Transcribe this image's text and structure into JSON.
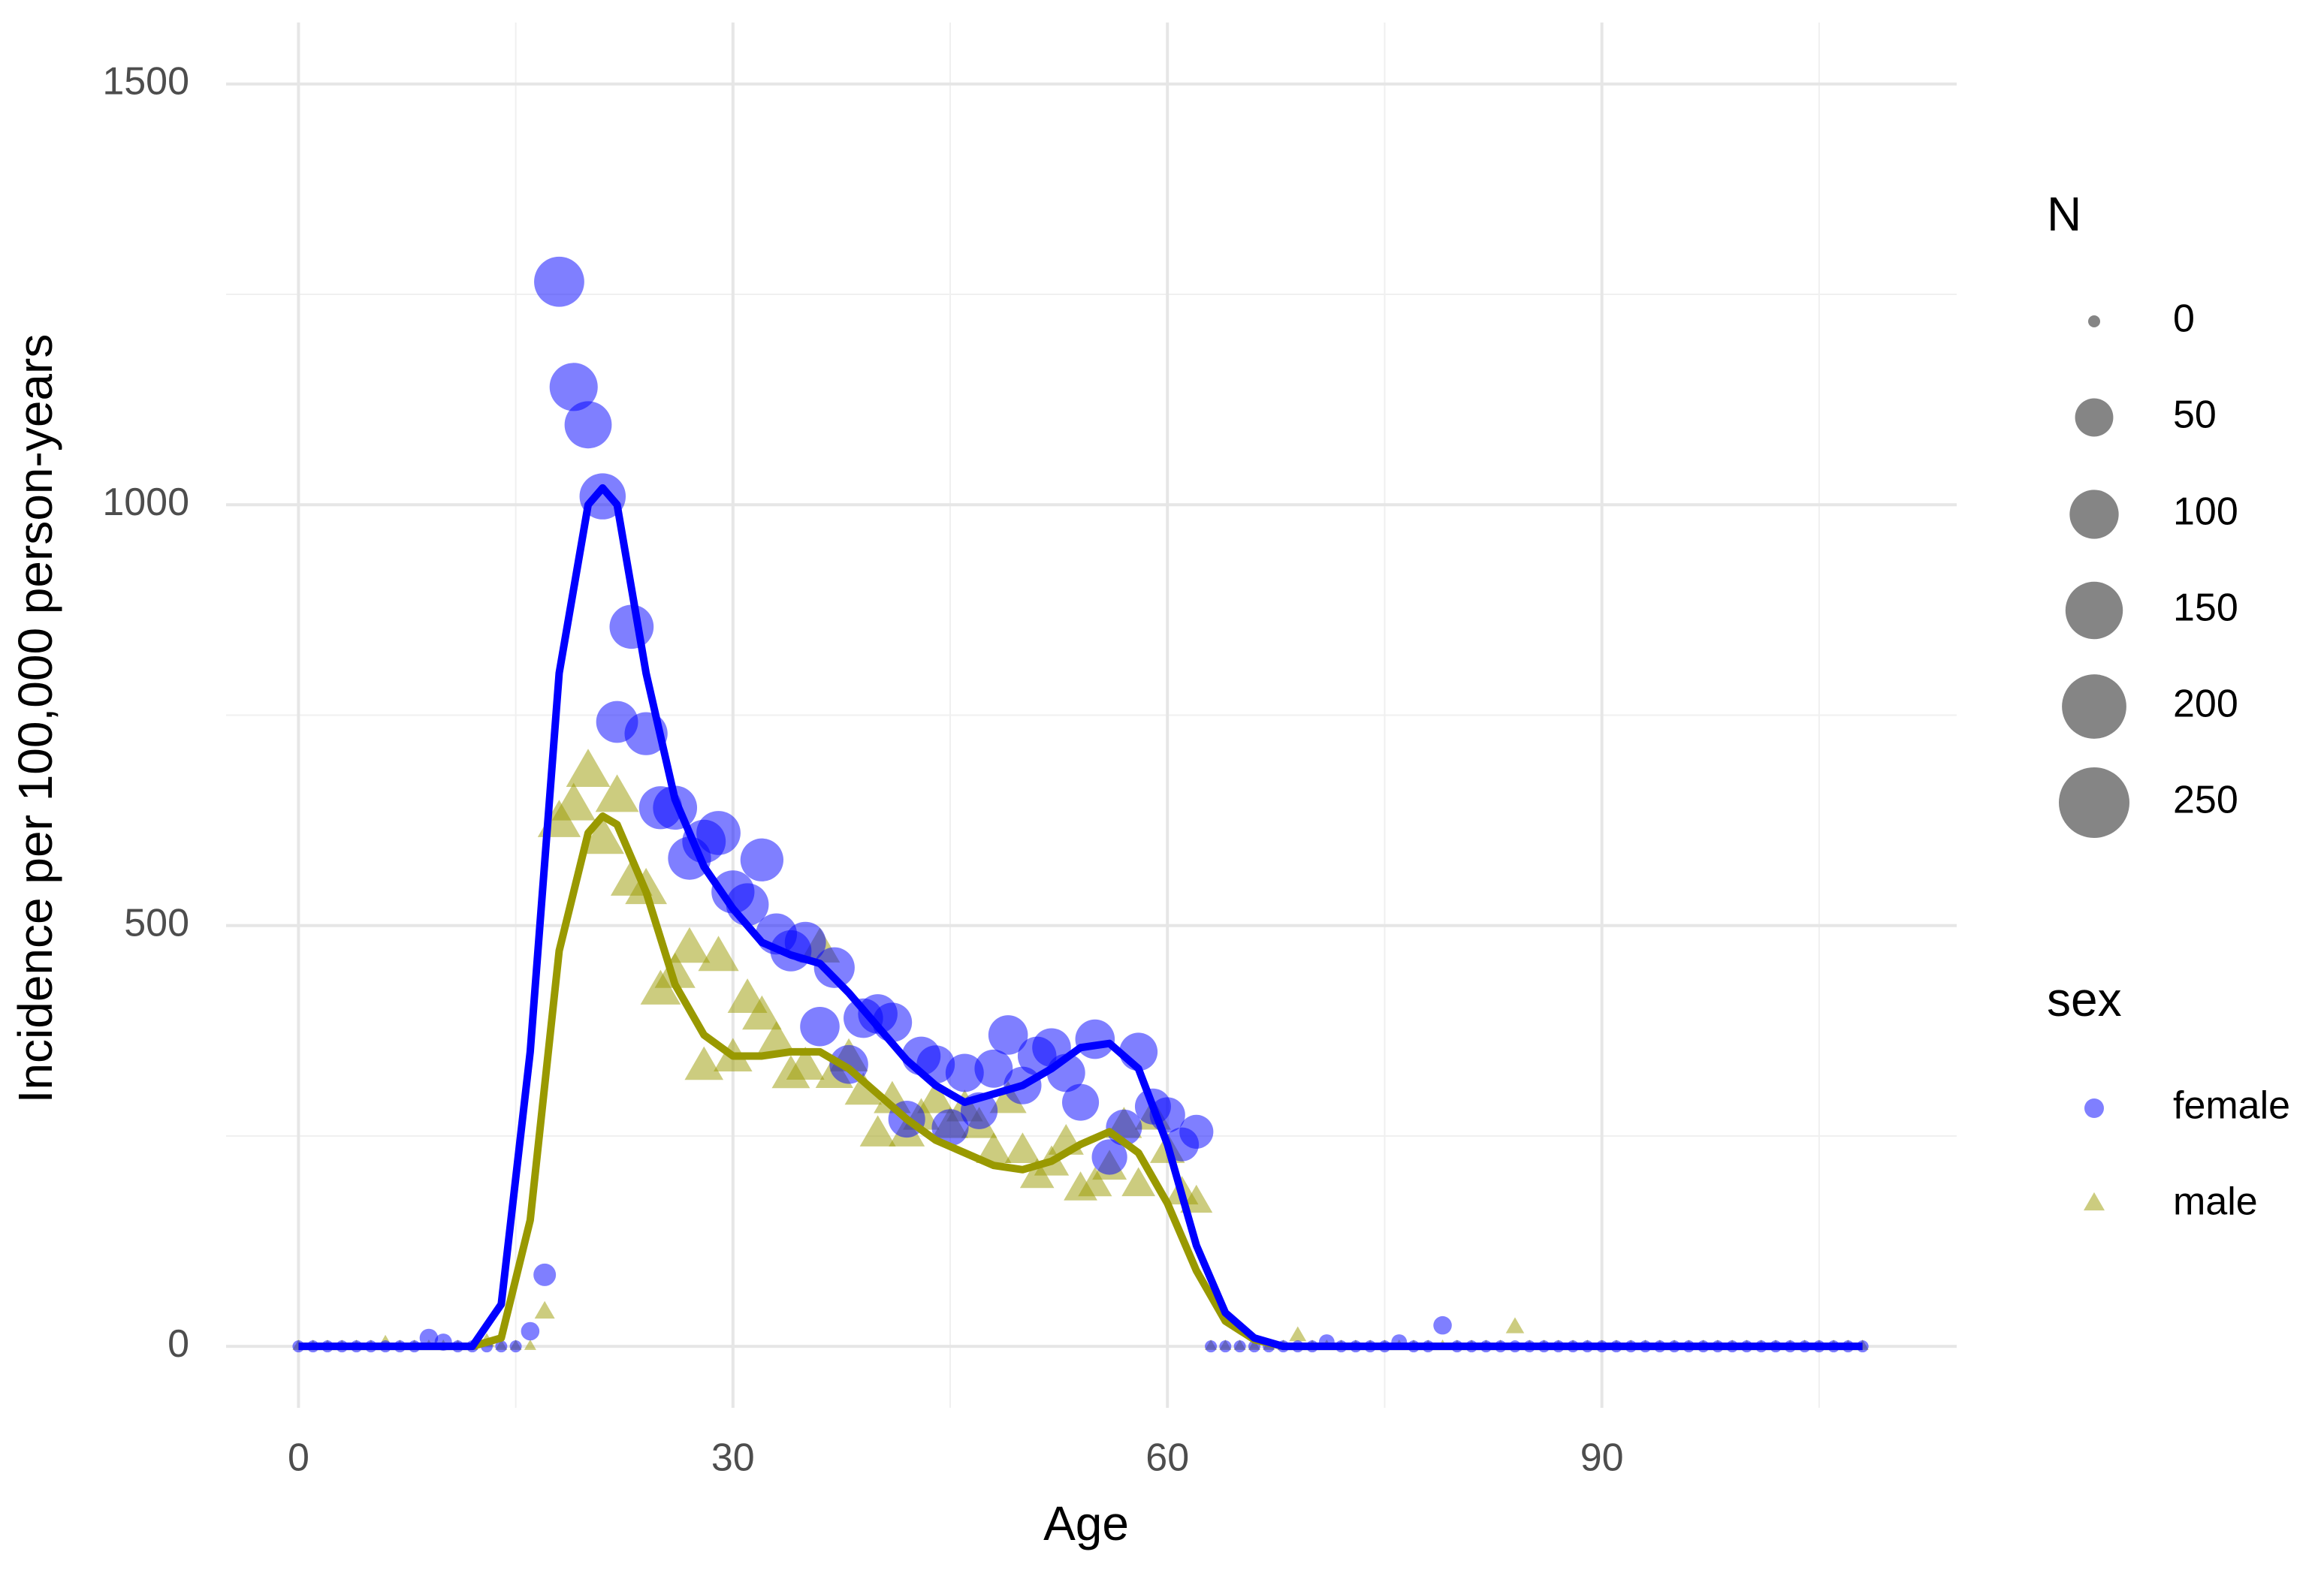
{
  "chart_data": {
    "type": "scatter",
    "xlabel": "Age",
    "ylabel": "Incidence per 100,000 person-years",
    "xlim": [
      -5,
      114.5
    ],
    "ylim": [
      -73,
      1573
    ],
    "xticks": [
      0,
      30,
      60,
      90
    ],
    "yticks": [
      0,
      500,
      1000,
      1500
    ],
    "xminor": [
      15,
      45,
      75,
      105
    ],
    "yminor": [
      250,
      750,
      1250
    ],
    "grid": true,
    "size_legend": {
      "title": "N",
      "values": [
        0,
        50,
        100,
        150,
        200,
        250
      ]
    },
    "color_legend_title": "sex",
    "series": [
      {
        "name": "female",
        "color": "#0000ff",
        "marker": "circle",
        "x": [
          0,
          1,
          2,
          3,
          4,
          5,
          6,
          7,
          8,
          9,
          10,
          11,
          12,
          13,
          14,
          15,
          16,
          17,
          18,
          19,
          20,
          21,
          22,
          23,
          24,
          25,
          26,
          27,
          28,
          29,
          30,
          31,
          32,
          33,
          34,
          35,
          36,
          37,
          38,
          39,
          40,
          41,
          42,
          43,
          44,
          45,
          46,
          47,
          48,
          49,
          50,
          51,
          52,
          53,
          54,
          55,
          56,
          57,
          58,
          59,
          60,
          61,
          62,
          63,
          64,
          65,
          66,
          67,
          68,
          69,
          70,
          71,
          72,
          73,
          74,
          75,
          76,
          77,
          78,
          79,
          80,
          81,
          82,
          83,
          84,
          85,
          86,
          87,
          88,
          89,
          90,
          91,
          92,
          93,
          94,
          95,
          96,
          97,
          98,
          99,
          100,
          101,
          102,
          103,
          104,
          105,
          106,
          107,
          108
        ],
        "values": [
          0,
          0,
          0,
          0,
          0,
          0,
          0,
          0,
          0,
          10,
          5,
          0,
          0,
          0,
          0,
          0,
          18,
          85,
          1265,
          1140,
          1095,
          1010,
          742,
          855,
          728,
          640,
          640,
          580,
          600,
          610,
          540,
          525,
          578,
          490,
          470,
          480,
          380,
          450,
          335,
          390,
          395,
          385,
          270,
          345,
          335,
          260,
          325,
          280,
          330,
          370,
          310,
          345,
          355,
          325,
          290,
          365,
          225,
          260,
          350,
          285,
          275,
          240,
          255,
          0,
          0,
          0,
          0,
          0,
          0,
          0,
          0,
          5,
          0,
          0,
          0,
          0,
          5,
          0,
          0,
          25,
          0,
          0,
          0,
          0,
          0,
          0,
          0,
          0,
          0,
          0,
          0,
          0,
          0,
          0,
          0,
          0,
          0,
          0,
          0,
          0,
          0,
          0,
          0,
          0,
          0,
          0,
          0,
          0,
          0
        ],
        "sizes": [
          0,
          0,
          0,
          0,
          0,
          0,
          0,
          0,
          0,
          3,
          2,
          0,
          0,
          0,
          0,
          0,
          3,
          8,
          106,
          95,
          90,
          85,
          65,
          75,
          70,
          70,
          75,
          70,
          72,
          75,
          70,
          68,
          70,
          62,
          62,
          62,
          55,
          60,
          52,
          55,
          55,
          55,
          45,
          52,
          50,
          45,
          50,
          45,
          50,
          55,
          48,
          52,
          52,
          50,
          45,
          55,
          40,
          42,
          50,
          42,
          40,
          35,
          35,
          0,
          0,
          0,
          0,
          0,
          0,
          0,
          0,
          1,
          0,
          0,
          0,
          0,
          1,
          0,
          0,
          3,
          0,
          0,
          0,
          0,
          0,
          0,
          0,
          0,
          0,
          0,
          0,
          0,
          0,
          0,
          0,
          0,
          0,
          0,
          0,
          0,
          0,
          0,
          0,
          0,
          0,
          0,
          0,
          0,
          0
        ]
      },
      {
        "name": "male",
        "color": "#999900",
        "marker": "triangle",
        "x": [
          0,
          1,
          2,
          3,
          4,
          5,
          6,
          7,
          8,
          9,
          10,
          11,
          12,
          13,
          14,
          15,
          16,
          17,
          18,
          19,
          20,
          21,
          22,
          23,
          24,
          25,
          26,
          27,
          28,
          29,
          30,
          31,
          32,
          33,
          34,
          35,
          36,
          37,
          38,
          39,
          40,
          41,
          42,
          43,
          44,
          45,
          46,
          47,
          48,
          49,
          50,
          51,
          52,
          53,
          54,
          55,
          56,
          57,
          58,
          59,
          60,
          61,
          62,
          63,
          64,
          65,
          66,
          67,
          68,
          69,
          70,
          71,
          72,
          73,
          74,
          75,
          76,
          77,
          78,
          79,
          80,
          81,
          82,
          83,
          84,
          85,
          86,
          87,
          88,
          89,
          90,
          91,
          92,
          93,
          94,
          95,
          96,
          97,
          98,
          99,
          100,
          101,
          102,
          103,
          104,
          105,
          106,
          107,
          108
        ],
        "values": [
          0,
          0,
          0,
          0,
          0,
          0,
          3,
          0,
          0,
          0,
          0,
          0,
          0,
          5,
          0,
          0,
          0,
          40,
          620,
          640,
          680,
          600,
          650,
          550,
          540,
          420,
          440,
          470,
          330,
          460,
          340,
          410,
          390,
          360,
          320,
          330,
          470,
          320,
          340,
          300,
          250,
          290,
          250,
          270,
          290,
          260,
          280,
          260,
          230,
          290,
          230,
          200,
          215,
          240,
          185,
          190,
          210,
          260,
          190,
          270,
          230,
          180,
          170,
          0,
          0,
          0,
          0,
          0,
          0,
          12,
          0,
          0,
          0,
          0,
          0,
          0,
          0,
          0,
          0,
          0,
          0,
          0,
          0,
          0,
          22,
          0,
          0,
          0,
          0,
          0,
          0,
          0,
          0,
          0,
          0,
          0,
          0,
          0,
          0,
          0,
          0,
          0,
          0,
          0,
          0,
          0,
          0,
          0,
          0
        ],
        "sizes": [
          0,
          0,
          0,
          0,
          0,
          0,
          1,
          0,
          0,
          0,
          0,
          0,
          0,
          1,
          0,
          0,
          0,
          5,
          70,
          72,
          75,
          70,
          72,
          65,
          65,
          58,
          60,
          62,
          52,
          60,
          52,
          56,
          55,
          52,
          50,
          50,
          58,
          48,
          50,
          46,
          42,
          46,
          42,
          44,
          46,
          42,
          44,
          42,
          40,
          45,
          40,
          36,
          38,
          40,
          34,
          35,
          37,
          42,
          34,
          42,
          38,
          32,
          30,
          0,
          0,
          0,
          0,
          0,
          0,
          2,
          0,
          0,
          0,
          0,
          0,
          0,
          0,
          0,
          0,
          0,
          0,
          0,
          0,
          0,
          3,
          0,
          0,
          0,
          0,
          0,
          0,
          0,
          0,
          0,
          0,
          0,
          0,
          0,
          0,
          0,
          0,
          0,
          0,
          0,
          0,
          0,
          0,
          0,
          0
        ]
      }
    ],
    "smooth": [
      {
        "color": "#999900",
        "x": [
          0,
          12,
          14,
          16,
          18,
          20,
          21,
          22,
          24,
          26,
          28,
          30,
          32,
          34,
          36,
          38,
          40,
          42,
          44,
          46,
          48,
          50,
          52,
          54,
          56,
          58,
          60,
          62,
          64,
          66,
          68,
          108
        ],
        "values": [
          0,
          0,
          10,
          150,
          470,
          610,
          630,
          620,
          540,
          430,
          370,
          345,
          345,
          350,
          350,
          330,
          300,
          270,
          245,
          230,
          215,
          210,
          220,
          240,
          255,
          230,
          170,
          90,
          30,
          8,
          0,
          0
        ]
      },
      {
        "color": "#0000ff",
        "x": [
          0,
          12,
          14,
          16,
          18,
          20,
          21,
          22,
          24,
          26,
          28,
          30,
          32,
          34,
          36,
          38,
          40,
          42,
          44,
          46,
          48,
          50,
          52,
          54,
          56,
          58,
          60,
          62,
          64,
          66,
          68,
          108
        ],
        "values": [
          0,
          0,
          50,
          350,
          800,
          1000,
          1020,
          1000,
          800,
          650,
          570,
          520,
          480,
          465,
          455,
          420,
          380,
          340,
          310,
          290,
          300,
          310,
          330,
          355,
          360,
          330,
          240,
          120,
          40,
          10,
          0,
          0
        ]
      }
    ]
  }
}
